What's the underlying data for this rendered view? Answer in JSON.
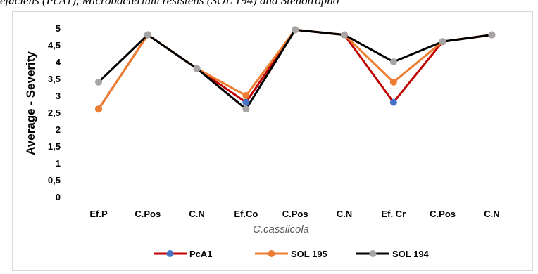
{
  "caption": "efaciens (PcA1), Microbacterium resistens (SOL 194) and Stenotropho",
  "chart_data": {
    "type": "line",
    "categories": [
      "Ef.P",
      "C.Pos",
      "C.N",
      "Ef.Co",
      "C.Pos",
      "C.N",
      "Ef. Cr",
      "C.Pos",
      "C.N"
    ],
    "xlabel": "C.cassiicola",
    "ylabel": "Average - Severity",
    "ylim": [
      0,
      5
    ],
    "yticks": [
      "0",
      "0,5",
      "1",
      "1,5",
      "2",
      "2,5",
      "3",
      "3,5",
      "4",
      "4,5",
      "5"
    ],
    "grid": false,
    "legend": "bottom",
    "series": [
      {
        "name": "PcA1",
        "line_color": "#c00000",
        "marker_color": "#4472c4",
        "values": [
          2.6,
          4.8,
          3.8,
          2.8,
          4.95,
          4.8,
          2.8,
          4.6,
          4.8
        ]
      },
      {
        "name": "SOL 195",
        "line_color": "#ed7d31",
        "marker_color": "#ed7d31",
        "values": [
          2.6,
          4.8,
          3.8,
          3.0,
          4.95,
          4.8,
          3.4,
          4.6,
          4.8
        ]
      },
      {
        "name": "SOL 194",
        "line_color": "#000000",
        "marker_color": "#a5a5a5",
        "values": [
          3.4,
          4.8,
          3.8,
          2.6,
          4.95,
          4.8,
          4.0,
          4.6,
          4.8
        ]
      }
    ]
  }
}
